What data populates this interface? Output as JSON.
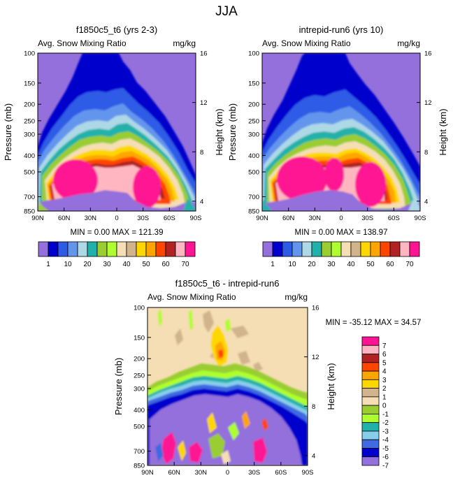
{
  "page_title": "JJA",
  "palettes": {
    "mean": [
      "#9370DB",
      "#0000CD",
      "#2E5BE6",
      "#6495ED",
      "#ADD8E6",
      "#20B2AA",
      "#9ACD32",
      "#ADFF2F",
      "#F5DEB3",
      "#D2B48C",
      "#FFD700",
      "#FFA500",
      "#FF4500",
      "#B22222",
      "#FFB6C1",
      "#FF1493"
    ],
    "diff": [
      "#9370DB",
      "#0000CD",
      "#4169E1",
      "#87CEEB",
      "#20B2AA",
      "#ADFF2F",
      "#9ACD32",
      "#F5DEB3",
      "#D2B48C",
      "#FFD700",
      "#FFA500",
      "#FF4500",
      "#B22222",
      "#FFB6C1",
      "#FF1493"
    ]
  },
  "chart_data": [
    {
      "id": "panel1",
      "type": "contour",
      "title": "f1850c5_t6 (yrs 2-3)",
      "subtitle_left": "Avg. Snow Mixing Ratio",
      "subtitle_right": "mg/kg",
      "ylabel": "Pressure (mb)",
      "ylabel_right": "Height (km)",
      "x_ticks": [
        "90N",
        "60N",
        "30N",
        "0",
        "30S",
        "60S",
        "90S"
      ],
      "y_ticks": [
        "100",
        "150",
        "200",
        "250",
        "300",
        "400",
        "500",
        "700",
        "850"
      ],
      "y_ticks_right": [
        "16",
        "12",
        "8",
        "4"
      ],
      "minmax_text": "MIN =  0.00  MAX = 121.39",
      "min": 0.0,
      "max": 121.39,
      "colorbar_labels": [
        "1",
        "10",
        "20",
        "30",
        "40",
        "50",
        "60",
        "70"
      ]
    },
    {
      "id": "panel2",
      "type": "contour",
      "title": "intrepid-run6 (yrs 10)",
      "subtitle_left": "Avg. Snow Mixing Ratio",
      "subtitle_right": "mg/kg",
      "ylabel": "Pressure (mb)",
      "ylabel_right": "Height (km)",
      "x_ticks": [
        "90N",
        "60N",
        "30N",
        "0",
        "30S",
        "60S",
        "90S"
      ],
      "y_ticks": [
        "100",
        "150",
        "200",
        "250",
        "300",
        "400",
        "500",
        "700",
        "850"
      ],
      "y_ticks_right": [
        "16",
        "12",
        "8",
        "4"
      ],
      "minmax_text": "MIN =  0.00  MAX = 138.97",
      "min": 0.0,
      "max": 138.97,
      "colorbar_labels": [
        "1",
        "10",
        "20",
        "30",
        "40",
        "50",
        "60",
        "70"
      ]
    },
    {
      "id": "panel3",
      "type": "contour",
      "title": "f1850c5_t6 - intrepid-run6",
      "subtitle_left": "Avg. Snow Mixing Ratio",
      "subtitle_right": "mg/kg",
      "ylabel": "Pressure (mb)",
      "ylabel_right": "Height (km)",
      "x_ticks": [
        "90N",
        "60N",
        "30N",
        "0",
        "30S",
        "60S",
        "90S"
      ],
      "y_ticks": [
        "100",
        "150",
        "200",
        "250",
        "300",
        "400",
        "500",
        "700",
        "850"
      ],
      "y_ticks_right": [
        "16",
        "12",
        "8",
        "4"
      ],
      "minmax_text": "MIN = -35.12  MAX =  34.57",
      "min": -35.12,
      "max": 34.57,
      "colorbar_labels": [
        "7",
        "6",
        "5",
        "4",
        "3",
        "2",
        "1",
        "0",
        "-1",
        "-2",
        "-3",
        "-4",
        "-5",
        "-6",
        "-7"
      ]
    }
  ]
}
